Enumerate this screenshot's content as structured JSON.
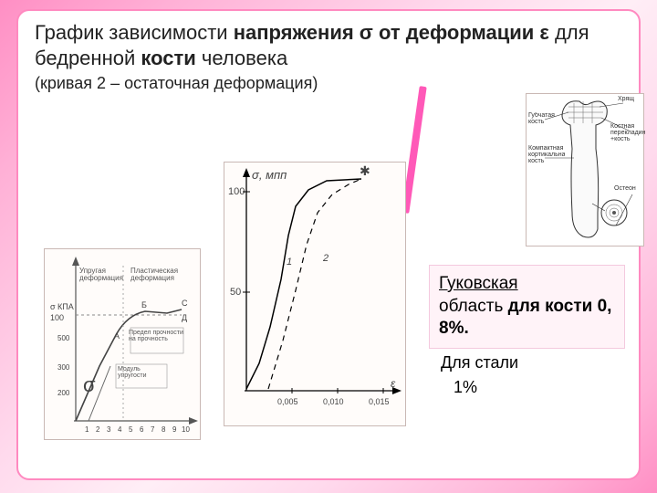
{
  "title": {
    "part1": "График зависимости ",
    "bold1": "напряжения σ от деформации ε ",
    "part2": "для бедренной ",
    "bold2": "кости ",
    "part3": "человека"
  },
  "subtitle": "(кривая 2 – остаточная деформация)",
  "hooke": {
    "line1": "Гуковская",
    "line2a": "область ",
    "line2b": "для кости  0, 8%."
  },
  "steel": {
    "line1": "Для стали",
    "line2": "1%"
  },
  "center_chart": {
    "type": "line",
    "ylabel": "σ, мпп",
    "ymax_label": "100",
    "ymid_label": "50",
    "x_ticks": [
      "0,005",
      "0,010",
      "0,015"
    ],
    "xend_label": "ε",
    "curve1_label": "1",
    "curve2_label": "2",
    "curve1": {
      "stroke": "#000000",
      "width": 1.5,
      "dash": "none",
      "pts": [
        [
          24,
          248
        ],
        [
          38,
          220
        ],
        [
          50,
          180
        ],
        [
          62,
          128
        ],
        [
          70,
          80
        ],
        [
          78,
          48
        ],
        [
          92,
          30
        ],
        [
          112,
          20
        ],
        [
          150,
          18
        ]
      ]
    },
    "curve2": {
      "stroke": "#000000",
      "width": 1.2,
      "dash": "6,5",
      "pts": [
        [
          48,
          248
        ],
        [
          64,
          195
        ],
        [
          78,
          140
        ],
        [
          90,
          90
        ],
        [
          102,
          55
        ],
        [
          118,
          35
        ],
        [
          136,
          24
        ],
        [
          150,
          18
        ]
      ]
    },
    "axis_color": "#000000",
    "bg": "#fffcfa"
  },
  "left_chart": {
    "type": "line",
    "ylabel_top": "σ КПА",
    "ylabel_num": "100",
    "region1": "Упругая деформация",
    "region2": "Пластическая деформация",
    "points": {
      "A": "А",
      "B": "Б",
      "C": "С",
      "D": "Д"
    },
    "note1": "Предел прочности на прочность",
    "note2": "Модуль упругости",
    "big_sigma": "σ",
    "x_ticks": [
      "1",
      "2",
      "3",
      "4",
      "5",
      "6",
      "7",
      "8",
      "9",
      "10"
    ],
    "y_ticks": [
      "200",
      "300",
      "500"
    ],
    "axis_color": "#555555",
    "curve_color": "#444444",
    "bg": "#fffcfa"
  },
  "bone_diagram": {
    "labels": {
      "l1": "Губчатая кость",
      "l2": "Компактная кортикальная кость",
      "l3": "Хрящ",
      "l4": "Костная перекладина +кость",
      "l5": "Остеон"
    },
    "stroke": "#333333",
    "bg": "#ffffff"
  },
  "colors": {
    "panel_border": "#ff8ac0",
    "accent": "#ff59b8",
    "callout_bg": "#fff3f8",
    "callout_border": "#f4c9de"
  }
}
